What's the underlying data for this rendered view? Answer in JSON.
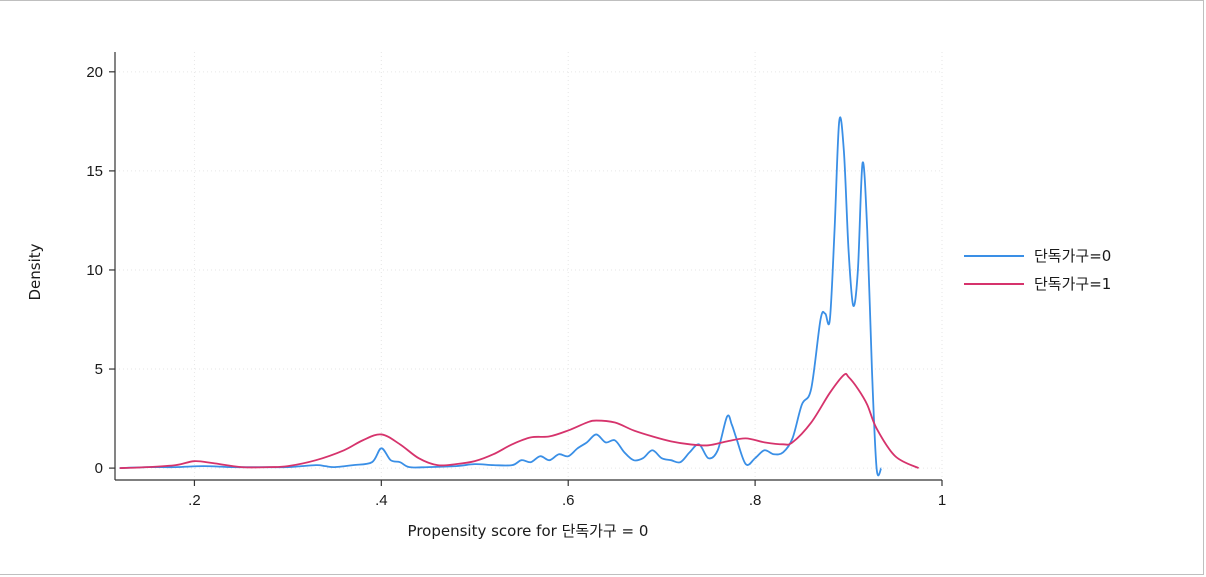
{
  "chart_data": {
    "type": "line",
    "title": "",
    "xlabel": "Propensity score for 단독가구 = 0",
    "ylabel": "Density",
    "xlim": [
      0.115,
      1.0
    ],
    "ylim": [
      -0.6,
      21
    ],
    "x_ticks": [
      0.2,
      0.4,
      0.6,
      0.8,
      1.0
    ],
    "x_tick_labels": [
      ".2",
      ".4",
      ".6",
      ".8",
      "1"
    ],
    "y_ticks": [
      0,
      5,
      10,
      15,
      20
    ],
    "y_tick_labels": [
      "0",
      "5",
      "10",
      "15",
      "20"
    ],
    "grid": true,
    "legend_position": "right",
    "series": [
      {
        "name": "단독가구=0",
        "color": "#3a8fe6",
        "x": [
          0.12,
          0.15,
          0.18,
          0.21,
          0.24,
          0.27,
          0.3,
          0.33,
          0.34,
          0.35,
          0.37,
          0.39,
          0.4,
          0.41,
          0.42,
          0.43,
          0.45,
          0.48,
          0.5,
          0.52,
          0.54,
          0.55,
          0.56,
          0.57,
          0.58,
          0.59,
          0.6,
          0.61,
          0.62,
          0.63,
          0.64,
          0.65,
          0.66,
          0.67,
          0.68,
          0.69,
          0.7,
          0.71,
          0.72,
          0.73,
          0.74,
          0.75,
          0.76,
          0.77,
          0.775,
          0.78,
          0.79,
          0.8,
          0.81,
          0.82,
          0.83,
          0.84,
          0.85,
          0.86,
          0.87,
          0.875,
          0.88,
          0.885,
          0.89,
          0.895,
          0.9,
          0.905,
          0.91,
          0.915,
          0.92,
          0.925,
          0.93,
          0.935
        ],
        "y": [
          0.0,
          0.05,
          0.05,
          0.1,
          0.05,
          0.05,
          0.05,
          0.15,
          0.1,
          0.05,
          0.15,
          0.3,
          1.0,
          0.4,
          0.3,
          0.05,
          0.05,
          0.1,
          0.2,
          0.15,
          0.15,
          0.4,
          0.3,
          0.6,
          0.4,
          0.7,
          0.6,
          1.0,
          1.3,
          1.7,
          1.3,
          1.4,
          0.8,
          0.4,
          0.5,
          0.9,
          0.5,
          0.4,
          0.3,
          0.8,
          1.2,
          0.5,
          0.9,
          2.6,
          2.2,
          1.5,
          0.2,
          0.5,
          0.9,
          0.7,
          0.8,
          1.5,
          3.2,
          4.0,
          7.5,
          7.8,
          7.5,
          12.0,
          17.5,
          16.0,
          11.0,
          8.2,
          10.0,
          15.4,
          12.0,
          5.0,
          0.0,
          0.0
        ]
      },
      {
        "name": "단독가구=1",
        "color": "#d6336c",
        "x": [
          0.12,
          0.15,
          0.18,
          0.2,
          0.22,
          0.25,
          0.28,
          0.3,
          0.33,
          0.36,
          0.38,
          0.4,
          0.42,
          0.44,
          0.46,
          0.48,
          0.5,
          0.52,
          0.54,
          0.56,
          0.58,
          0.6,
          0.62,
          0.63,
          0.65,
          0.67,
          0.69,
          0.71,
          0.73,
          0.75,
          0.77,
          0.79,
          0.81,
          0.83,
          0.84,
          0.86,
          0.88,
          0.895,
          0.9,
          0.91,
          0.92,
          0.93,
          0.95,
          0.975
        ],
        "y": [
          0.0,
          0.05,
          0.15,
          0.35,
          0.25,
          0.05,
          0.05,
          0.1,
          0.4,
          0.9,
          1.4,
          1.7,
          1.2,
          0.5,
          0.15,
          0.2,
          0.35,
          0.7,
          1.2,
          1.55,
          1.6,
          1.9,
          2.3,
          2.4,
          2.3,
          1.9,
          1.6,
          1.35,
          1.2,
          1.15,
          1.35,
          1.5,
          1.3,
          1.2,
          1.3,
          2.3,
          3.8,
          4.7,
          4.6,
          4.0,
          3.2,
          2.0,
          0.6,
          0.0
        ]
      }
    ]
  }
}
